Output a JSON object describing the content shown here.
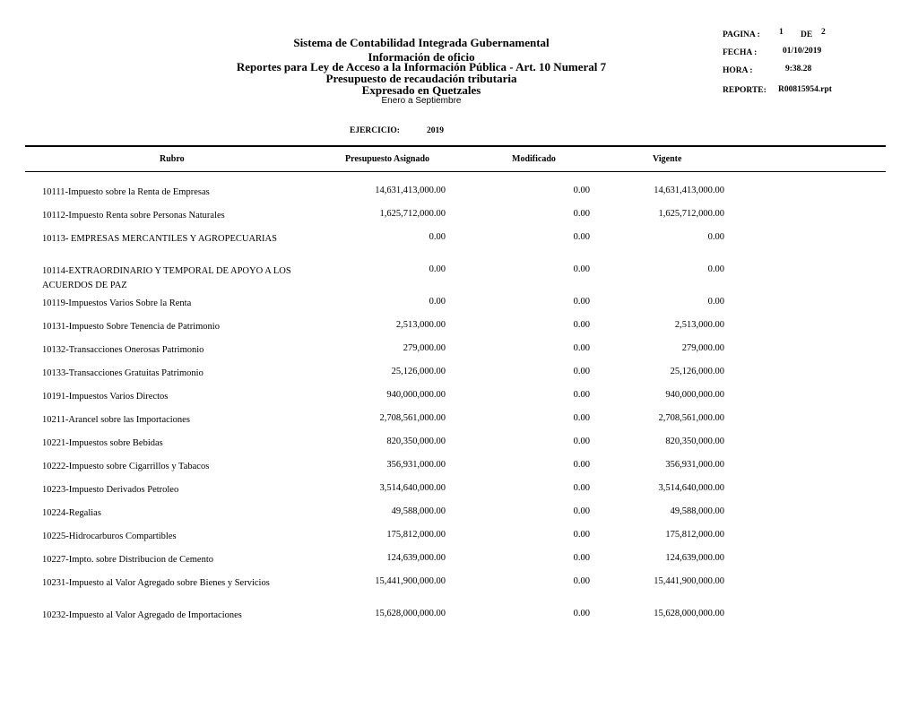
{
  "header": {
    "title": "Sistema de Contabilidad Integrada Gubernamental",
    "line2": "Información de oficio",
    "line3": "Reportes para Ley de Acceso a la Información Pública - Art. 10 Numeral 7",
    "line4": "Presupuesto de recaudación tributaria",
    "line5": "Expresado en Quetzales",
    "period": "Enero  a  Septiembre",
    "ejercicio_label": "EJERCICIO:",
    "ejercicio_value": "2019"
  },
  "meta": {
    "pagina_label": "PAGINA  :",
    "pagina_value": "1",
    "de_label": "DE",
    "de_value": "2",
    "fecha_label": "FECHA    :",
    "fecha_value": "01/10/2019",
    "hora_label": "HORA      :",
    "hora_value": "9:38.28",
    "reporte_label": "REPORTE:",
    "reporte_value": "R00815954.rpt"
  },
  "columns": [
    "Rubro",
    "Presupuesto Asignado",
    "Modificado",
    "Vigente"
  ],
  "rows": [
    {
      "rubro": "10111-Impuesto sobre la Renta de Empresas",
      "asignado": "14,631,413,000.00",
      "modificado": "0.00",
      "vigente": "14,631,413,000.00"
    },
    {
      "rubro": "10112-Impuesto Renta sobre Personas Naturales",
      "asignado": "1,625,712,000.00",
      "modificado": "0.00",
      "vigente": "1,625,712,000.00"
    },
    {
      "rubro": "10113- EMPRESAS MERCANTILES Y AGROPECUARIAS",
      "asignado": "0.00",
      "modificado": "0.00",
      "vigente": "0.00",
      "double": true
    },
    {
      "rubro": "10114-EXTRAORDINARIO Y TEMPORAL DE APOYO A LOS ACUERDOS DE PAZ",
      "asignado": "0.00",
      "modificado": "0.00",
      "vigente": "0.00",
      "double": true
    },
    {
      "rubro": "10119-Impuestos Varios Sobre la Renta",
      "asignado": "0.00",
      "modificado": "0.00",
      "vigente": "0.00"
    },
    {
      "rubro": "10131-Impuesto Sobre Tenencia de Patrimonio",
      "asignado": "2,513,000.00",
      "modificado": "0.00",
      "vigente": "2,513,000.00"
    },
    {
      "rubro": "10132-Transacciones Onerosas Patrimonio",
      "asignado": "279,000.00",
      "modificado": "0.00",
      "vigente": "279,000.00"
    },
    {
      "rubro": "10133-Transacciones Gratuitas Patrimonio",
      "asignado": "25,126,000.00",
      "modificado": "0.00",
      "vigente": "25,126,000.00"
    },
    {
      "rubro": "10191-Impuestos Varios Directos",
      "asignado": "940,000,000.00",
      "modificado": "0.00",
      "vigente": "940,000,000.00"
    },
    {
      "rubro": "10211-Arancel sobre las Importaciones",
      "asignado": "2,708,561,000.00",
      "modificado": "0.00",
      "vigente": "2,708,561,000.00"
    },
    {
      "rubro": "10221-Impuestos sobre Bebidas",
      "asignado": "820,350,000.00",
      "modificado": "0.00",
      "vigente": "820,350,000.00"
    },
    {
      "rubro": "10222-Impuesto sobre Cigarrillos y Tabacos",
      "asignado": "356,931,000.00",
      "modificado": "0.00",
      "vigente": "356,931,000.00"
    },
    {
      "rubro": "10223-Impuesto Derivados Petroleo",
      "asignado": "3,514,640,000.00",
      "modificado": "0.00",
      "vigente": "3,514,640,000.00"
    },
    {
      "rubro": "10224-Regalias",
      "asignado": "49,588,000.00",
      "modificado": "0.00",
      "vigente": "49,588,000.00"
    },
    {
      "rubro": "10225-Hidrocarburos Compartibles",
      "asignado": "175,812,000.00",
      "modificado": "0.00",
      "vigente": "175,812,000.00"
    },
    {
      "rubro": "10227-Impto. sobre Distribucion de Cemento",
      "asignado": "124,639,000.00",
      "modificado": "0.00",
      "vigente": "124,639,000.00"
    },
    {
      "rubro": "10231-Impuesto al Valor Agregado sobre Bienes y Servicios",
      "asignado": "15,441,900,000.00",
      "modificado": "0.00",
      "vigente": "15,441,900,000.00",
      "double": true
    },
    {
      "rubro": "10232-Impuesto al Valor Agregado de Importaciones",
      "asignado": "15,628,000,000.00",
      "modificado": "0.00",
      "vigente": "15,628,000,000.00"
    }
  ]
}
